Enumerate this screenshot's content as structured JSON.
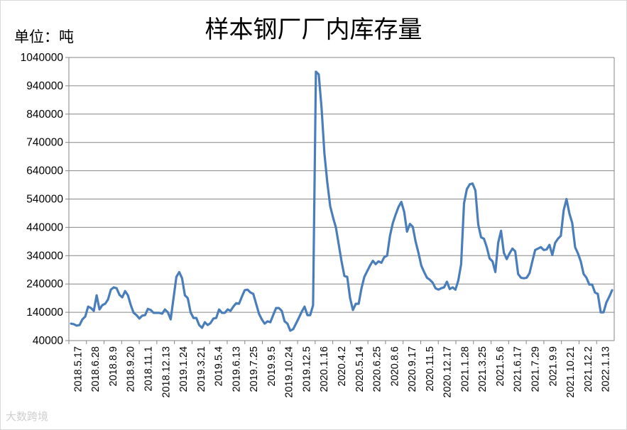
{
  "watermark": "大数跨境",
  "chart_data": {
    "type": "line",
    "title": "样本钢厂厂内库存量",
    "unit_label": "单位：吨",
    "ylim": [
      40000,
      1040000
    ],
    "yticks": [
      40000,
      140000,
      240000,
      340000,
      440000,
      540000,
      640000,
      740000,
      840000,
      940000,
      1040000
    ],
    "x_tick_labels": [
      "2018.5.17",
      "2018.6.28",
      "2018.8.9",
      "2018.9.20",
      "2018.11.1",
      "2018.12.13",
      "2019.1.24",
      "2019.3.21",
      "2019.5.4",
      "2019.6.13",
      "2019.7.25",
      "2019.9.5",
      "2019.10.24",
      "2019.12.5",
      "2020.1.16",
      "2020.4.2",
      "2020.5.14",
      "2020.6.25",
      "2020.8.6",
      "2020.9.17",
      "2020.11.5",
      "2020.12.17",
      "2021.1.28",
      "2021.3.25",
      "2021.5.6",
      "2021.6.17",
      "2021.7.29",
      "2021.9.9",
      "2021.10.21",
      "2021.12.2",
      "2022.1.13"
    ],
    "grid": true,
    "legend": "none",
    "line_color": "#4a7ebb",
    "series": [
      {
        "values": [
          100000,
          98000,
          93000,
          95000,
          115000,
          125000,
          160000,
          155000,
          145000,
          200000,
          150000,
          165000,
          170000,
          185000,
          220000,
          228000,
          225000,
          202000,
          193000,
          215000,
          200000,
          165000,
          138000,
          130000,
          118000,
          128000,
          130000,
          152000,
          148000,
          138000,
          138000,
          138000,
          135000,
          150000,
          140000,
          115000,
          190000,
          265000,
          282000,
          260000,
          200000,
          190000,
          140000,
          120000,
          120000,
          95000,
          85000,
          105000,
          95000,
          102000,
          118000,
          120000,
          150000,
          138000,
          138000,
          150000,
          145000,
          160000,
          172000,
          170000,
          195000,
          218000,
          220000,
          210000,
          205000,
          170000,
          135000,
          115000,
          100000,
          108000,
          105000,
          130000,
          155000,
          155000,
          145000,
          108000,
          100000,
          75000,
          80000,
          100000,
          120000,
          142000,
          160000,
          130000,
          130000,
          165000,
          990000,
          980000,
          860000,
          700000,
          600000,
          515000,
          475000,
          440000,
          380000,
          320000,
          268000,
          265000,
          190000,
          148000,
          170000,
          170000,
          225000,
          265000,
          285000,
          305000,
          322000,
          310000,
          320000,
          315000,
          335000,
          340000,
          410000,
          455000,
          485000,
          512000,
          530000,
          495000,
          425000,
          452000,
          442000,
          390000,
          350000,
          305000,
          282000,
          262000,
          255000,
          245000,
          225000,
          220000,
          225000,
          228000,
          248000,
          222000,
          228000,
          220000,
          252000,
          310000,
          525000,
          575000,
          592000,
          595000,
          570000,
          450000,
          405000,
          400000,
          370000,
          330000,
          320000,
          282000,
          385000,
          428000,
          350000,
          328000,
          348000,
          365000,
          355000,
          275000,
          262000,
          260000,
          262000,
          278000,
          320000,
          360000,
          365000,
          370000,
          360000,
          362000,
          378000,
          342000,
          385000,
          400000,
          410000,
          500000,
          540000,
          490000,
          455000,
          370000,
          348000,
          320000,
          275000,
          262000,
          238000,
          238000,
          210000,
          205000,
          140000,
          140000,
          175000,
          195000,
          218000
        ]
      }
    ]
  }
}
